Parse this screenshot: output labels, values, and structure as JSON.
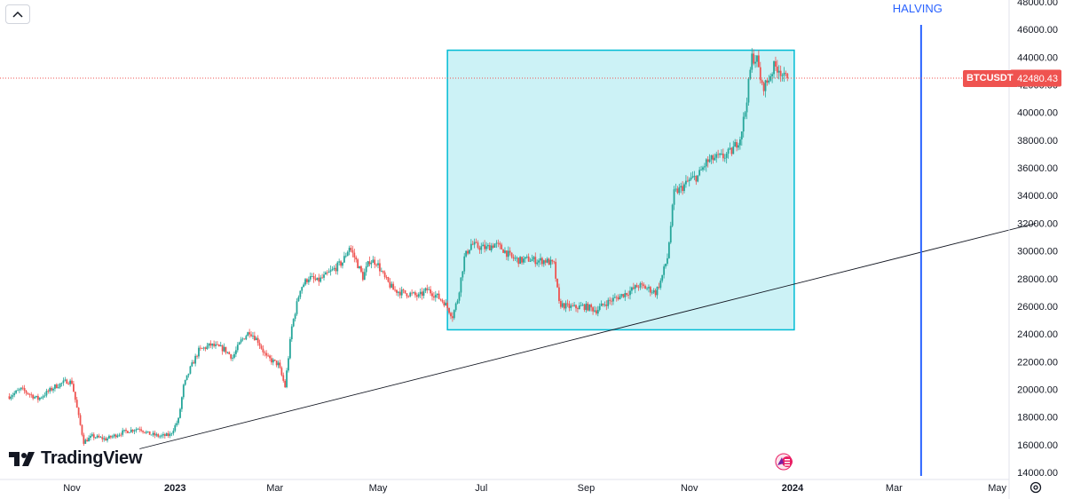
{
  "chart_data": {
    "type": "candlestick",
    "symbol": "BTCUSDT",
    "last_price": "42480.43",
    "last_price_value": 42480.43,
    "annotation": "HALVING",
    "ylim": [
      14000,
      48000
    ],
    "y_ticks": [
      "14000.00",
      "16000.00",
      "18000.00",
      "20000.00",
      "22000.00",
      "24000.00",
      "26000.00",
      "28000.00",
      "30000.00",
      "32000.00",
      "34000.00",
      "36000.00",
      "38000.00",
      "40000.00",
      "42000.00",
      "44000.00",
      "46000.00",
      "48000.00"
    ],
    "x_ticks": [
      {
        "label": "Nov",
        "t": 0
      },
      {
        "label": "2023",
        "t": 61
      },
      {
        "label": "Mar",
        "t": 120
      },
      {
        "label": "May",
        "t": 181
      },
      {
        "label": "Jul",
        "t": 242
      },
      {
        "label": "Sep",
        "t": 304
      },
      {
        "label": "Nov",
        "t": 365
      },
      {
        "label": "2024",
        "t": 426
      },
      {
        "label": "Mar",
        "t": 486
      },
      {
        "label": "May",
        "t": 547
      }
    ],
    "price_path": [
      [
        -37,
        19500
      ],
      [
        -30,
        20000
      ],
      [
        -20,
        19300
      ],
      [
        -10,
        20200
      ],
      [
        -3,
        20600
      ],
      [
        0,
        20500
      ],
      [
        4,
        18000
      ],
      [
        7,
        16200
      ],
      [
        12,
        16600
      ],
      [
        20,
        16400
      ],
      [
        30,
        16900
      ],
      [
        40,
        17200
      ],
      [
        45,
        16800
      ],
      [
        52,
        16600
      ],
      [
        58,
        16700
      ],
      [
        63,
        17800
      ],
      [
        66,
        20200
      ],
      [
        70,
        21500
      ],
      [
        75,
        22800
      ],
      [
        82,
        23200
      ],
      [
        90,
        22900
      ],
      [
        95,
        22300
      ],
      [
        100,
        23500
      ],
      [
        105,
        24200
      ],
      [
        110,
        23500
      ],
      [
        115,
        22300
      ],
      [
        122,
        21800
      ],
      [
        126,
        20200
      ],
      [
        130,
        24500
      ],
      [
        135,
        27300
      ],
      [
        140,
        28100
      ],
      [
        145,
        27800
      ],
      [
        150,
        28200
      ],
      [
        155,
        28700
      ],
      [
        160,
        29200
      ],
      [
        164,
        30300
      ],
      [
        168,
        29300
      ],
      [
        172,
        28100
      ],
      [
        176,
        29300
      ],
      [
        180,
        29200
      ],
      [
        185,
        28000
      ],
      [
        190,
        27200
      ],
      [
        195,
        27000
      ],
      [
        200,
        26900
      ],
      [
        205,
        26700
      ],
      [
        210,
        27200
      ],
      [
        215,
        26800
      ],
      [
        220,
        26300
      ],
      [
        225,
        25300
      ],
      [
        228,
        26500
      ],
      [
        232,
        29500
      ],
      [
        236,
        30500
      ],
      [
        240,
        30300
      ],
      [
        245,
        30200
      ],
      [
        250,
        30500
      ],
      [
        255,
        30100
      ],
      [
        260,
        29500
      ],
      [
        265,
        29300
      ],
      [
        270,
        29400
      ],
      [
        275,
        29300
      ],
      [
        280,
        29300
      ],
      [
        285,
        29000
      ],
      [
        288,
        26200
      ],
      [
        292,
        26000
      ],
      [
        297,
        25900
      ],
      [
        302,
        26000
      ],
      [
        306,
        25900
      ],
      [
        310,
        25700
      ],
      [
        315,
        26200
      ],
      [
        320,
        26500
      ],
      [
        325,
        26800
      ],
      [
        330,
        27100
      ],
      [
        335,
        27500
      ],
      [
        340,
        27300
      ],
      [
        345,
        27000
      ],
      [
        348,
        27800
      ],
      [
        352,
        29500
      ],
      [
        356,
        34200
      ],
      [
        360,
        34500
      ],
      [
        365,
        35100
      ],
      [
        370,
        35400
      ],
      [
        375,
        36400
      ],
      [
        380,
        36700
      ],
      [
        385,
        36800
      ],
      [
        390,
        37200
      ],
      [
        395,
        38200
      ],
      [
        398,
        40100
      ],
      [
        402,
        44000
      ],
      [
        405,
        43800
      ],
      [
        408,
        41800
      ],
      [
        411,
        42200
      ],
      [
        415,
        43300
      ],
      [
        418,
        43200
      ],
      [
        421,
        42500
      ],
      [
        423,
        42480
      ]
    ],
    "range_box": {
      "t0": 222,
      "t1": 427,
      "price_low": 24300,
      "price_high": 44500
    },
    "trend_line": {
      "t0": 40,
      "price0": 15700,
      "t1": 570,
      "price1": 32000
    },
    "halving_line": {
      "t": 502
    }
  },
  "ui": {
    "brand": "TradingView",
    "icons": {
      "collapse": "chevron-up-icon",
      "settings": "gear-icon",
      "logo": "tv-logo-icon",
      "event": "event-marker-icon"
    }
  }
}
